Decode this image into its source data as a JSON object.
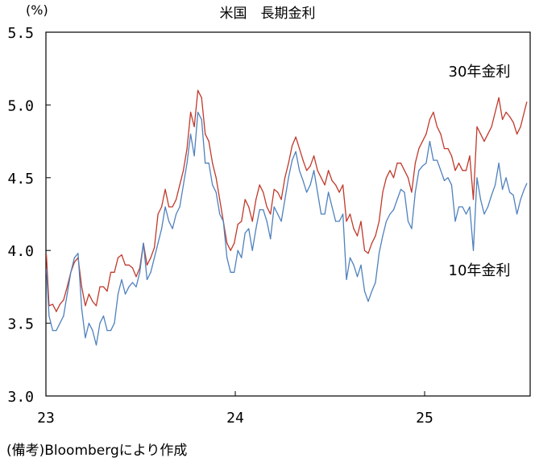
{
  "chart_data": {
    "type": "line",
    "title": "米国　長期金利",
    "unit": "(%)",
    "ylim": [
      3.0,
      5.5
    ],
    "y_ticks": [
      "3.0",
      "3.5",
      "4.0",
      "4.5",
      "5.0",
      "5.5"
    ],
    "x_ticks": [
      "23",
      "24",
      "25"
    ],
    "grid": false,
    "x_label_format": "yy",
    "series": [
      {
        "name": "30年金利",
        "color": "#c0392b",
        "points": [
          [
            "2023-01-02",
            3.97
          ],
          [
            "2023-01-07",
            3.62
          ],
          [
            "2023-01-14",
            3.63
          ],
          [
            "2023-01-21",
            3.58
          ],
          [
            "2023-01-28",
            3.63
          ],
          [
            "2023-02-04",
            3.66
          ],
          [
            "2023-02-11",
            3.75
          ],
          [
            "2023-02-18",
            3.85
          ],
          [
            "2023-02-25",
            3.92
          ],
          [
            "2023-03-04",
            3.95
          ],
          [
            "2023-03-11",
            3.75
          ],
          [
            "2023-03-18",
            3.62
          ],
          [
            "2023-03-25",
            3.7
          ],
          [
            "2023-04-01",
            3.65
          ],
          [
            "2023-04-08",
            3.62
          ],
          [
            "2023-04-15",
            3.75
          ],
          [
            "2023-04-22",
            3.75
          ],
          [
            "2023-04-29",
            3.72
          ],
          [
            "2023-05-06",
            3.85
          ],
          [
            "2023-05-13",
            3.85
          ],
          [
            "2023-05-20",
            3.95
          ],
          [
            "2023-05-27",
            3.97
          ],
          [
            "2023-06-03",
            3.9
          ],
          [
            "2023-06-10",
            3.9
          ],
          [
            "2023-06-17",
            3.88
          ],
          [
            "2023-06-24",
            3.82
          ],
          [
            "2023-07-01",
            3.88
          ],
          [
            "2023-07-08",
            4.05
          ],
          [
            "2023-07-15",
            3.9
          ],
          [
            "2023-07-22",
            3.95
          ],
          [
            "2023-07-29",
            4.02
          ],
          [
            "2023-08-05",
            4.25
          ],
          [
            "2023-08-12",
            4.3
          ],
          [
            "2023-08-19",
            4.42
          ],
          [
            "2023-08-26",
            4.3
          ],
          [
            "2023-09-02",
            4.3
          ],
          [
            "2023-09-09",
            4.35
          ],
          [
            "2023-09-16",
            4.45
          ],
          [
            "2023-09-23",
            4.55
          ],
          [
            "2023-09-30",
            4.7
          ],
          [
            "2023-10-07",
            4.95
          ],
          [
            "2023-10-14",
            4.85
          ],
          [
            "2023-10-21",
            5.1
          ],
          [
            "2023-10-28",
            5.05
          ],
          [
            "2023-11-04",
            4.8
          ],
          [
            "2023-11-11",
            4.75
          ],
          [
            "2023-11-18",
            4.6
          ],
          [
            "2023-11-25",
            4.5
          ],
          [
            "2023-12-02",
            4.35
          ],
          [
            "2023-12-09",
            4.2
          ],
          [
            "2023-12-16",
            4.05
          ],
          [
            "2023-12-23",
            4.0
          ],
          [
            "2023-12-30",
            4.05
          ],
          [
            "2024-01-06",
            4.18
          ],
          [
            "2024-01-13",
            4.2
          ],
          [
            "2024-01-20",
            4.35
          ],
          [
            "2024-01-27",
            4.3
          ],
          [
            "2024-02-03",
            4.2
          ],
          [
            "2024-02-10",
            4.35
          ],
          [
            "2024-02-17",
            4.45
          ],
          [
            "2024-02-24",
            4.4
          ],
          [
            "2024-03-02",
            4.3
          ],
          [
            "2024-03-09",
            4.25
          ],
          [
            "2024-03-16",
            4.42
          ],
          [
            "2024-03-23",
            4.4
          ],
          [
            "2024-03-30",
            4.35
          ],
          [
            "2024-04-06",
            4.5
          ],
          [
            "2024-04-13",
            4.6
          ],
          [
            "2024-04-20",
            4.72
          ],
          [
            "2024-04-27",
            4.78
          ],
          [
            "2024-05-04",
            4.7
          ],
          [
            "2024-05-11",
            4.62
          ],
          [
            "2024-05-18",
            4.55
          ],
          [
            "2024-05-25",
            4.58
          ],
          [
            "2024-06-01",
            4.65
          ],
          [
            "2024-06-08",
            4.55
          ],
          [
            "2024-06-15",
            4.5
          ],
          [
            "2024-06-22",
            4.45
          ],
          [
            "2024-06-29",
            4.55
          ],
          [
            "2024-07-06",
            4.48
          ],
          [
            "2024-07-13",
            4.45
          ],
          [
            "2024-07-20",
            4.4
          ],
          [
            "2024-07-27",
            4.45
          ],
          [
            "2024-08-03",
            4.2
          ],
          [
            "2024-08-10",
            4.25
          ],
          [
            "2024-08-17",
            4.15
          ],
          [
            "2024-08-24",
            4.1
          ],
          [
            "2024-08-31",
            4.2
          ],
          [
            "2024-09-07",
            4.0
          ],
          [
            "2024-09-14",
            3.98
          ],
          [
            "2024-09-21",
            4.05
          ],
          [
            "2024-09-28",
            4.1
          ],
          [
            "2024-10-05",
            4.2
          ],
          [
            "2024-10-12",
            4.4
          ],
          [
            "2024-10-19",
            4.5
          ],
          [
            "2024-10-26",
            4.55
          ],
          [
            "2024-11-02",
            4.5
          ],
          [
            "2024-11-09",
            4.6
          ],
          [
            "2024-11-16",
            4.6
          ],
          [
            "2024-11-23",
            4.55
          ],
          [
            "2024-11-30",
            4.5
          ],
          [
            "2024-12-07",
            4.4
          ],
          [
            "2024-12-14",
            4.6
          ],
          [
            "2024-12-21",
            4.7
          ],
          [
            "2024-12-28",
            4.75
          ],
          [
            "2025-01-04",
            4.8
          ],
          [
            "2025-01-11",
            4.9
          ],
          [
            "2025-01-18",
            4.95
          ],
          [
            "2025-01-25",
            4.85
          ],
          [
            "2025-02-01",
            4.8
          ],
          [
            "2025-02-08",
            4.7
          ],
          [
            "2025-02-15",
            4.7
          ],
          [
            "2025-02-22",
            4.65
          ],
          [
            "2025-03-01",
            4.55
          ],
          [
            "2025-03-08",
            4.6
          ],
          [
            "2025-03-15",
            4.55
          ],
          [
            "2025-03-22",
            4.55
          ],
          [
            "2025-03-29",
            4.65
          ],
          [
            "2025-04-05",
            4.35
          ],
          [
            "2025-04-12",
            4.85
          ],
          [
            "2025-04-19",
            4.8
          ],
          [
            "2025-04-26",
            4.75
          ],
          [
            "2025-05-03",
            4.8
          ],
          [
            "2025-05-10",
            4.85
          ],
          [
            "2025-05-17",
            4.95
          ],
          [
            "2025-05-24",
            5.05
          ],
          [
            "2025-05-31",
            4.9
          ],
          [
            "2025-06-07",
            4.95
          ],
          [
            "2025-06-14",
            4.92
          ],
          [
            "2025-06-21",
            4.88
          ],
          [
            "2025-06-28",
            4.8
          ],
          [
            "2025-07-05",
            4.85
          ],
          [
            "2025-07-12",
            4.95
          ],
          [
            "2025-07-17",
            5.02
          ]
        ]
      },
      {
        "name": "10年金利",
        "color": "#4f81bd",
        "points": [
          [
            "2023-01-02",
            3.87
          ],
          [
            "2023-01-07",
            3.55
          ],
          [
            "2023-01-14",
            3.45
          ],
          [
            "2023-01-21",
            3.45
          ],
          [
            "2023-01-28",
            3.5
          ],
          [
            "2023-02-04",
            3.55
          ],
          [
            "2023-02-11",
            3.7
          ],
          [
            "2023-02-18",
            3.85
          ],
          [
            "2023-02-25",
            3.95
          ],
          [
            "2023-03-04",
            3.98
          ],
          [
            "2023-03-11",
            3.6
          ],
          [
            "2023-03-18",
            3.4
          ],
          [
            "2023-03-25",
            3.5
          ],
          [
            "2023-04-01",
            3.45
          ],
          [
            "2023-04-08",
            3.35
          ],
          [
            "2023-04-15",
            3.5
          ],
          [
            "2023-04-22",
            3.55
          ],
          [
            "2023-04-29",
            3.45
          ],
          [
            "2023-05-06",
            3.45
          ],
          [
            "2023-05-13",
            3.5
          ],
          [
            "2023-05-20",
            3.7
          ],
          [
            "2023-05-27",
            3.8
          ],
          [
            "2023-06-03",
            3.7
          ],
          [
            "2023-06-10",
            3.75
          ],
          [
            "2023-06-17",
            3.78
          ],
          [
            "2023-06-24",
            3.75
          ],
          [
            "2023-07-01",
            3.85
          ],
          [
            "2023-07-08",
            4.05
          ],
          [
            "2023-07-15",
            3.8
          ],
          [
            "2023-07-22",
            3.85
          ],
          [
            "2023-07-29",
            3.95
          ],
          [
            "2023-08-05",
            4.05
          ],
          [
            "2023-08-12",
            4.15
          ],
          [
            "2023-08-19",
            4.3
          ],
          [
            "2023-08-26",
            4.2
          ],
          [
            "2023-09-02",
            4.15
          ],
          [
            "2023-09-09",
            4.25
          ],
          [
            "2023-09-16",
            4.3
          ],
          [
            "2023-09-23",
            4.45
          ],
          [
            "2023-09-30",
            4.6
          ],
          [
            "2023-10-07",
            4.8
          ],
          [
            "2023-10-14",
            4.65
          ],
          [
            "2023-10-21",
            4.95
          ],
          [
            "2023-10-28",
            4.9
          ],
          [
            "2023-11-04",
            4.6
          ],
          [
            "2023-11-11",
            4.6
          ],
          [
            "2023-11-18",
            4.45
          ],
          [
            "2023-11-25",
            4.4
          ],
          [
            "2023-12-02",
            4.25
          ],
          [
            "2023-12-09",
            4.2
          ],
          [
            "2023-12-16",
            3.95
          ],
          [
            "2023-12-23",
            3.85
          ],
          [
            "2023-12-30",
            3.85
          ],
          [
            "2024-01-06",
            4.0
          ],
          [
            "2024-01-13",
            3.95
          ],
          [
            "2024-01-20",
            4.12
          ],
          [
            "2024-01-27",
            4.15
          ],
          [
            "2024-02-03",
            4.0
          ],
          [
            "2024-02-10",
            4.15
          ],
          [
            "2024-02-17",
            4.28
          ],
          [
            "2024-02-24",
            4.28
          ],
          [
            "2024-03-02",
            4.2
          ],
          [
            "2024-03-09",
            4.08
          ],
          [
            "2024-03-16",
            4.3
          ],
          [
            "2024-03-23",
            4.25
          ],
          [
            "2024-03-30",
            4.2
          ],
          [
            "2024-04-06",
            4.35
          ],
          [
            "2024-04-13",
            4.5
          ],
          [
            "2024-04-20",
            4.62
          ],
          [
            "2024-04-27",
            4.68
          ],
          [
            "2024-05-04",
            4.55
          ],
          [
            "2024-05-11",
            4.48
          ],
          [
            "2024-05-18",
            4.4
          ],
          [
            "2024-05-25",
            4.45
          ],
          [
            "2024-06-01",
            4.55
          ],
          [
            "2024-06-08",
            4.4
          ],
          [
            "2024-06-15",
            4.25
          ],
          [
            "2024-06-22",
            4.25
          ],
          [
            "2024-06-29",
            4.4
          ],
          [
            "2024-07-06",
            4.3
          ],
          [
            "2024-07-13",
            4.2
          ],
          [
            "2024-07-20",
            4.2
          ],
          [
            "2024-07-27",
            4.25
          ],
          [
            "2024-08-03",
            3.8
          ],
          [
            "2024-08-10",
            3.95
          ],
          [
            "2024-08-17",
            3.9
          ],
          [
            "2024-08-24",
            3.82
          ],
          [
            "2024-08-31",
            3.9
          ],
          [
            "2024-09-07",
            3.72
          ],
          [
            "2024-09-14",
            3.65
          ],
          [
            "2024-09-21",
            3.72
          ],
          [
            "2024-09-28",
            3.78
          ],
          [
            "2024-10-05",
            3.98
          ],
          [
            "2024-10-12",
            4.1
          ],
          [
            "2024-10-19",
            4.2
          ],
          [
            "2024-10-26",
            4.25
          ],
          [
            "2024-11-02",
            4.28
          ],
          [
            "2024-11-09",
            4.35
          ],
          [
            "2024-11-16",
            4.42
          ],
          [
            "2024-11-23",
            4.4
          ],
          [
            "2024-11-30",
            4.2
          ],
          [
            "2024-12-07",
            4.15
          ],
          [
            "2024-12-14",
            4.4
          ],
          [
            "2024-12-21",
            4.55
          ],
          [
            "2024-12-28",
            4.58
          ],
          [
            "2025-01-04",
            4.6
          ],
          [
            "2025-01-11",
            4.75
          ],
          [
            "2025-01-18",
            4.62
          ],
          [
            "2025-01-25",
            4.62
          ],
          [
            "2025-02-01",
            4.55
          ],
          [
            "2025-02-08",
            4.48
          ],
          [
            "2025-02-15",
            4.5
          ],
          [
            "2025-02-22",
            4.45
          ],
          [
            "2025-03-01",
            4.2
          ],
          [
            "2025-03-08",
            4.3
          ],
          [
            "2025-03-15",
            4.3
          ],
          [
            "2025-03-22",
            4.25
          ],
          [
            "2025-03-29",
            4.3
          ],
          [
            "2025-04-05",
            4.0
          ],
          [
            "2025-04-12",
            4.5
          ],
          [
            "2025-04-19",
            4.35
          ],
          [
            "2025-04-26",
            4.25
          ],
          [
            "2025-05-03",
            4.3
          ],
          [
            "2025-05-10",
            4.38
          ],
          [
            "2025-05-17",
            4.45
          ],
          [
            "2025-05-24",
            4.6
          ],
          [
            "2025-05-31",
            4.42
          ],
          [
            "2025-06-07",
            4.5
          ],
          [
            "2025-06-14",
            4.4
          ],
          [
            "2025-06-21",
            4.38
          ],
          [
            "2025-06-28",
            4.25
          ],
          [
            "2025-07-05",
            4.35
          ],
          [
            "2025-07-12",
            4.42
          ],
          [
            "2025-07-17",
            4.46
          ]
        ]
      }
    ]
  },
  "note": "(備考)Bloombergにより作成"
}
